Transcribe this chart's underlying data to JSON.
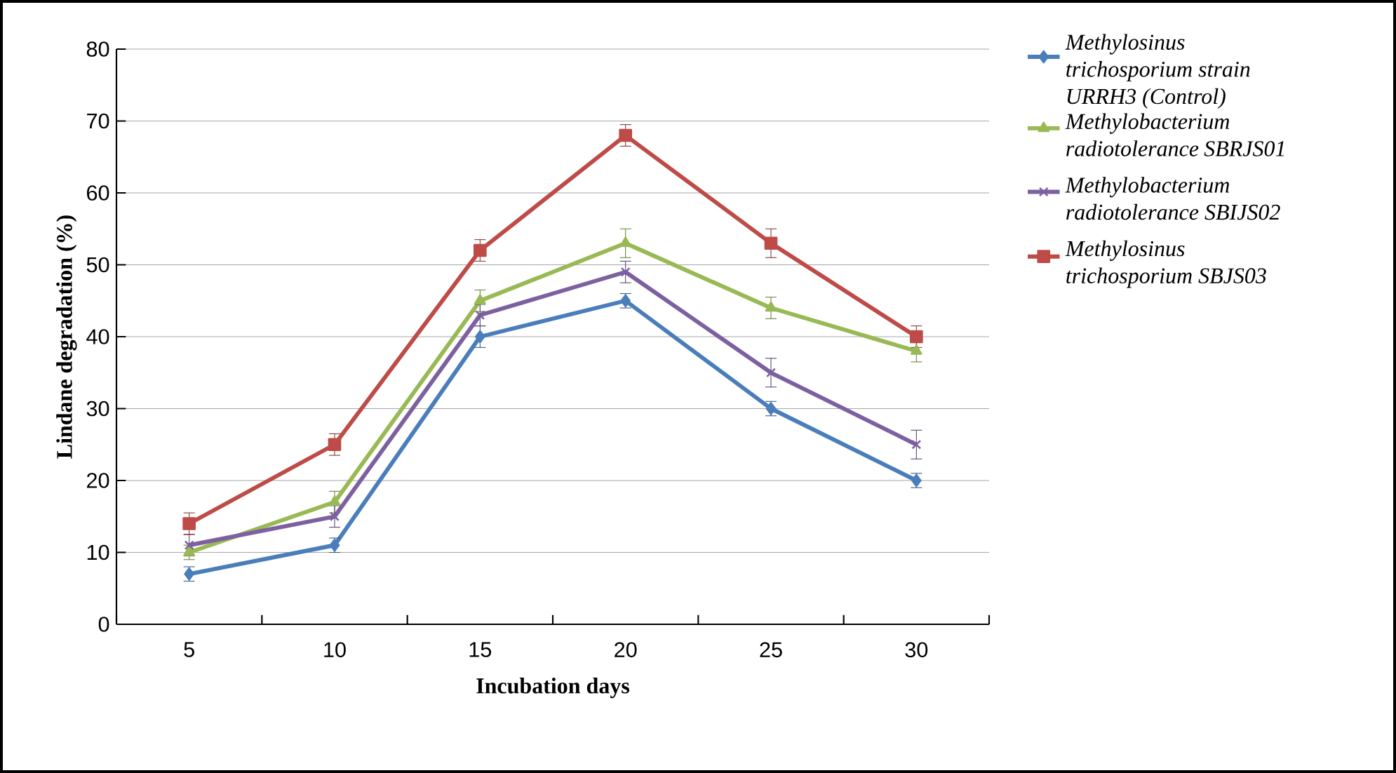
{
  "chart_data": {
    "type": "line",
    "xlabel": "Incubation days",
    "ylabel": "Lindane degradation (%)",
    "categories": [
      "5",
      "10",
      "15",
      "20",
      "25",
      "30"
    ],
    "ylim": [
      0,
      80
    ],
    "yticks": [
      0,
      10,
      20,
      30,
      40,
      50,
      60,
      70,
      80
    ],
    "grid": "y",
    "legend": "right",
    "series": [
      {
        "name": "Methylosinus trichosporium strain URRH3 (Control)",
        "color": "#4a7ebb",
        "marker": "diamond",
        "values": [
          7,
          11,
          40,
          45,
          30,
          20
        ],
        "errors": [
          1,
          1,
          1.5,
          1,
          1,
          1
        ]
      },
      {
        "name": "Methylobacterium radiotolerance SBRJS01",
        "color": "#98b954",
        "marker": "triangle",
        "values": [
          10,
          17,
          45,
          53,
          44,
          38
        ],
        "errors": [
          1,
          1.5,
          1.5,
          2,
          1.5,
          1.5
        ]
      },
      {
        "name": "Methylobacterium radiotolerance SBIJS02",
        "color": "#7d60a0",
        "marker": "cross",
        "values": [
          11,
          15,
          43,
          49,
          35,
          25
        ],
        "errors": [
          1.5,
          1.5,
          1.5,
          1.5,
          2,
          2
        ]
      },
      {
        "name": "Methylosinus trichosporium SBJS03",
        "color": "#be4b48",
        "marker": "square",
        "values": [
          14,
          25,
          52,
          68,
          53,
          40
        ],
        "errors": [
          1.5,
          1.5,
          1.5,
          1.5,
          2,
          1.5
        ]
      }
    ]
  }
}
